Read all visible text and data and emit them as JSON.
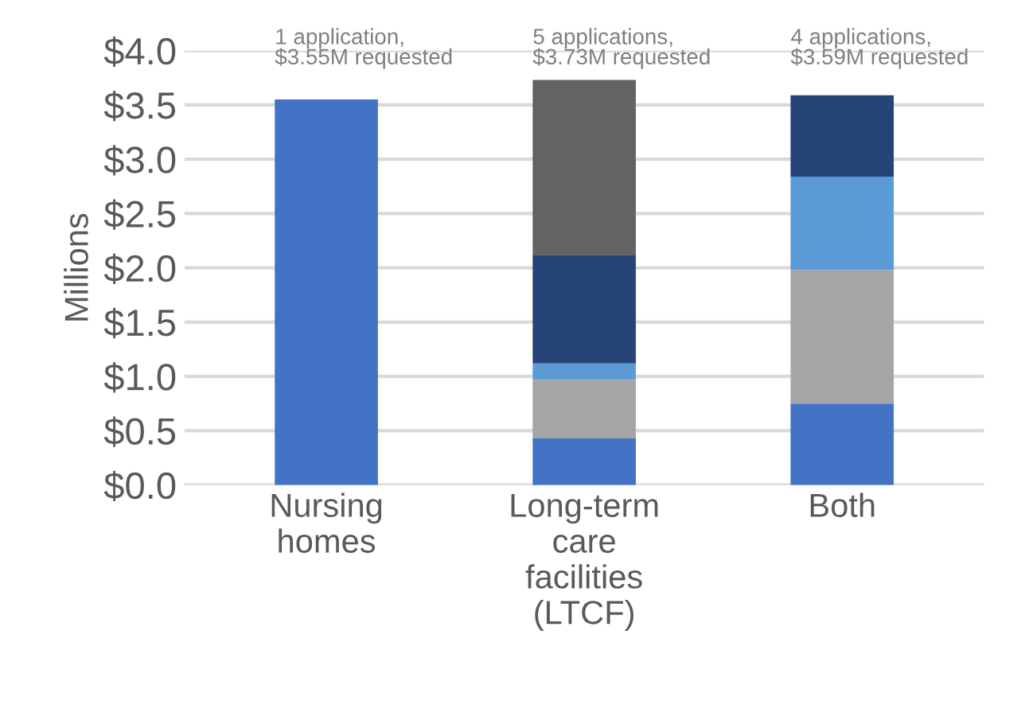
{
  "chart_data": {
    "type": "bar",
    "stacked": true,
    "ylabel": "Millions",
    "categories": [
      "Nursing\nhomes",
      "Long-term\ncare\nfacilities\n(LTCF)",
      "Both"
    ],
    "series": [
      {
        "color": "#4472c4",
        "values": [
          3.55,
          0.43,
          0.75
        ]
      },
      {
        "color": "#a5a5a5",
        "values": [
          null,
          0.54,
          1.23
        ]
      },
      {
        "color": "#5b9bd5",
        "values": [
          null,
          0.15,
          0.86
        ]
      },
      {
        "color": "#264478",
        "values": [
          null,
          1.0,
          0.75
        ]
      },
      {
        "color": "#636363",
        "values": [
          null,
          1.61,
          null
        ]
      }
    ],
    "annotations": [
      "1 application,\n$3.55M requested",
      "5 applications,\n$3.73M requested",
      "4 applications,\n$3.59M requested"
    ],
    "ylim": [
      0,
      4.0
    ],
    "yticks": [
      {
        "value": 0,
        "label": "$0.0"
      },
      {
        "value": 0.5,
        "label": "$0.5"
      },
      {
        "value": 1.0,
        "label": "$1.0"
      },
      {
        "value": 1.5,
        "label": "$1.5"
      },
      {
        "value": 2.0,
        "label": "$2.0"
      },
      {
        "value": 2.5,
        "label": "$2.5"
      },
      {
        "value": 3.0,
        "label": "$3.0"
      },
      {
        "value": 3.5,
        "label": "$3.5"
      },
      {
        "value": 4.0,
        "label": "$4.0"
      }
    ],
    "grid": "y",
    "legend": false
  }
}
